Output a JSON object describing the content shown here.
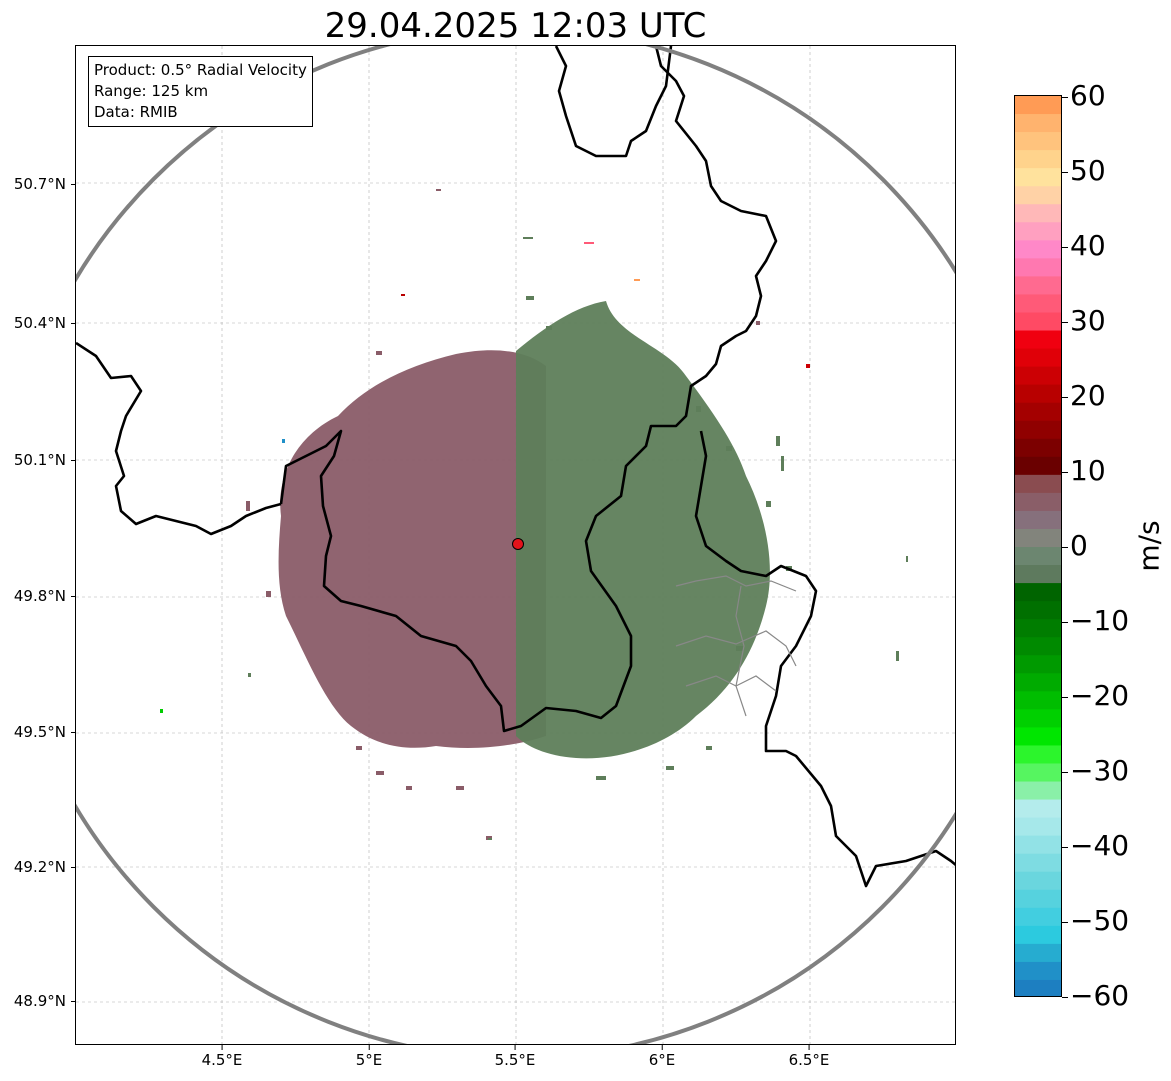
{
  "title": "29.04.2025 12:03 UTC",
  "info_box": {
    "product": "Product: 0.5° Radial Velocity",
    "range": "Range: 125 km",
    "data": "Data: RMIB"
  },
  "axes": {
    "lat_ticks": [
      "50.7°N",
      "50.4°N",
      "50.1°N",
      "49.8°N",
      "49.5°N",
      "49.2°N",
      "48.9°N"
    ],
    "lon_ticks": [
      "4.5°E",
      "5°E",
      "5.5°E",
      "6°E",
      "6.5°E"
    ]
  },
  "radar_site": {
    "lon": 5.5,
    "lat": 49.91,
    "color": "#e3131b"
  },
  "colorbar": {
    "label": "m/s",
    "ticks": [
      "60",
      "50",
      "40",
      "30",
      "20",
      "10",
      "0",
      "−10",
      "−20",
      "−30",
      "−40",
      "−50",
      "−60"
    ],
    "min": -60,
    "max": 60,
    "colors_top_to_bottom": [
      "#ff9b55",
      "#ffb36e",
      "#ffc37d",
      "#ffd38c",
      "#ffe29d",
      "#ffd2a6",
      "#ffb8b8",
      "#ffa0c0",
      "#ff88c8",
      "#ff78b0",
      "#ff6a90",
      "#ff5a78",
      "#ff4a64",
      "#f00010",
      "#e00008",
      "#cc0004",
      "#b80000",
      "#a40000",
      "#900000",
      "#7c0000",
      "#6a0000",
      "#8a4c50",
      "#8a5e68",
      "#86707c",
      "#82847c",
      "#6c8670",
      "#5e7a5e",
      "#006400",
      "#007000",
      "#007d00",
      "#008a00",
      "#009a00",
      "#00ab00",
      "#00bd00",
      "#00d000",
      "#00e600",
      "#2cf52c",
      "#56f560",
      "#8af0a8",
      "#b4ecec",
      "#a6e8ea",
      "#92e2e6",
      "#7edce2",
      "#6ad6de",
      "#56d2de",
      "#42cee0",
      "#2ccadf",
      "#26acd0",
      "#2090c8",
      "#1d7fc1"
    ]
  },
  "legend_colors": {
    "approaching": "#5e7e5a",
    "receding": "#8a5c68",
    "border": "#000000",
    "range_ring": "#808080"
  }
}
